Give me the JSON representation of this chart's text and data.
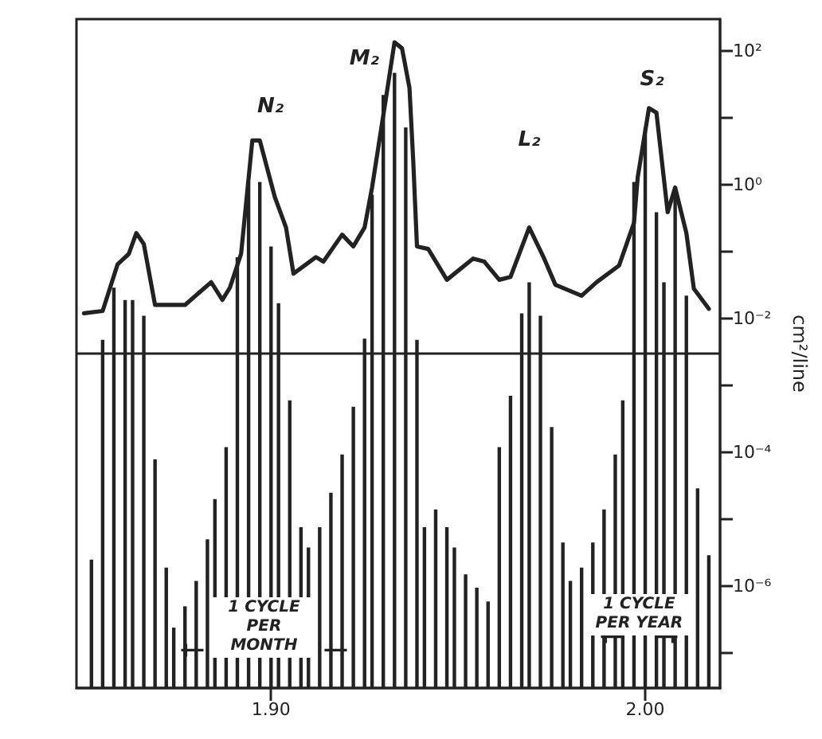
{
  "chart_data": {
    "type": "bar",
    "y2label": "cm²/line",
    "marker": "none",
    "xlim": [
      1.848,
      2.02
    ],
    "xticks": [
      {
        "value": 1.9,
        "label": "1.90"
      },
      {
        "value": 2.0,
        "label": "2.00"
      }
    ],
    "log": "y2",
    "y2lim": [
      3e-08,
      300
    ],
    "y2ticks": [
      {
        "value": 100,
        "label": "10²"
      },
      {
        "value": 10,
        "label": null
      },
      {
        "value": 1,
        "label": "10⁰"
      },
      {
        "value": 0.1,
        "label": null
      },
      {
        "value": 0.01,
        "label": "10⁻²"
      },
      {
        "value": 0.001,
        "label": null
      },
      {
        "value": 0.0001,
        "label": "10⁻⁴"
      },
      {
        "value": 1e-05,
        "label": null
      },
      {
        "value": 1e-06,
        "label": "10⁻⁶"
      },
      {
        "value": 1e-07,
        "label": null
      }
    ],
    "ref_lines": [
      {
        "axis": "y2",
        "value": 0.003,
        "color": "#222222"
      }
    ],
    "annotations": [
      "N₂",
      "M₂",
      "L₂",
      "S₂",
      "1 CYCLE PER MONTH",
      "1 CYCLE PER YEAR"
    ],
    "series": [
      {
        "axis": "y2",
        "color": "#222222",
        "x": [
          1.852,
          1.855,
          1.858,
          1.861,
          1.863,
          1.866,
          1.869,
          1.872,
          1.874,
          1.877,
          1.88,
          1.883,
          1.885,
          1.888,
          1.891,
          1.894,
          1.897,
          1.9,
          1.902,
          1.905,
          1.908,
          1.91,
          1.913,
          1.916,
          1.919,
          1.922,
          1.925,
          1.927,
          1.93,
          1.933,
          1.936,
          1.939,
          1.941,
          1.944,
          1.947,
          1.949,
          1.952,
          1.955,
          1.958,
          1.961,
          1.964,
          1.967,
          1.969,
          1.972,
          1.975,
          1.978,
          1.98,
          1.983,
          1.986,
          1.989,
          1.992,
          1.994,
          1.997,
          2.0,
          2.003,
          2.005,
          2.008,
          2.011,
          2.014,
          2.017
        ],
        "values": [
          2.5e-06,
          0.0048,
          0.029,
          0.019,
          0.019,
          0.011,
          7.9e-05,
          1.9e-06,
          2.4e-07,
          5e-07,
          1.2e-06,
          5e-06,
          2e-05,
          0.00012,
          0.083,
          1.1,
          1.1,
          0.12,
          0.017,
          0.0006,
          7.6e-06,
          3.8e-06,
          7.6e-06,
          2.5e-05,
          9.3e-05,
          0.00048,
          0.005,
          0.71,
          22,
          47,
          7.2,
          0.0048,
          7.6e-06,
          1.4e-05,
          7.6e-06,
          3.8e-06,
          1.5e-06,
          9.5e-07,
          5.9e-07,
          0.00012,
          0.0007,
          0.012,
          0.035,
          0.011,
          0.00024,
          4.5e-06,
          1.2e-06,
          1.9e-06,
          4.5e-06,
          1.4e-05,
          9.3e-05,
          0.0006,
          1.1,
          7.2,
          0.39,
          0.035,
          0.7,
          0.022,
          2.9e-05,
          2.9e-06
        ]
      },
      {
        "type": "line",
        "axis": "y2",
        "color": "#222222",
        "x": [
          1.85,
          1.855,
          1.859,
          1.862,
          1.864,
          1.866,
          1.869,
          1.877,
          1.884,
          1.887,
          1.889,
          1.892,
          1.895,
          1.897,
          1.901,
          1.904,
          1.906,
          1.912,
          1.914,
          1.919,
          1.922,
          1.925,
          1.927,
          1.931,
          1.933,
          1.935,
          1.937,
          1.938,
          1.939,
          1.942,
          1.947,
          1.954,
          1.957,
          1.961,
          1.964,
          1.969,
          1.973,
          1.976,
          1.983,
          1.987,
          1.993,
          1.997,
          1.998,
          2.001,
          2.003,
          2.006,
          2.008,
          2.011,
          2.013,
          2.017
        ],
        "values": [
          0.012,
          0.013,
          0.065,
          0.093,
          0.19,
          0.13,
          0.016,
          0.016,
          0.035,
          0.019,
          0.029,
          0.093,
          4.6,
          4.6,
          0.66,
          0.23,
          0.047,
          0.083,
          0.071,
          0.18,
          0.12,
          0.23,
          0.91,
          25,
          135,
          110,
          28,
          2.3,
          0.12,
          0.11,
          0.038,
          0.079,
          0.071,
          0.038,
          0.042,
          0.23,
          0.079,
          0.032,
          0.022,
          0.035,
          0.062,
          0.27,
          1.3,
          14,
          12,
          0.39,
          0.91,
          0.19,
          0.028,
          0.014
        ]
      }
    ]
  }
}
